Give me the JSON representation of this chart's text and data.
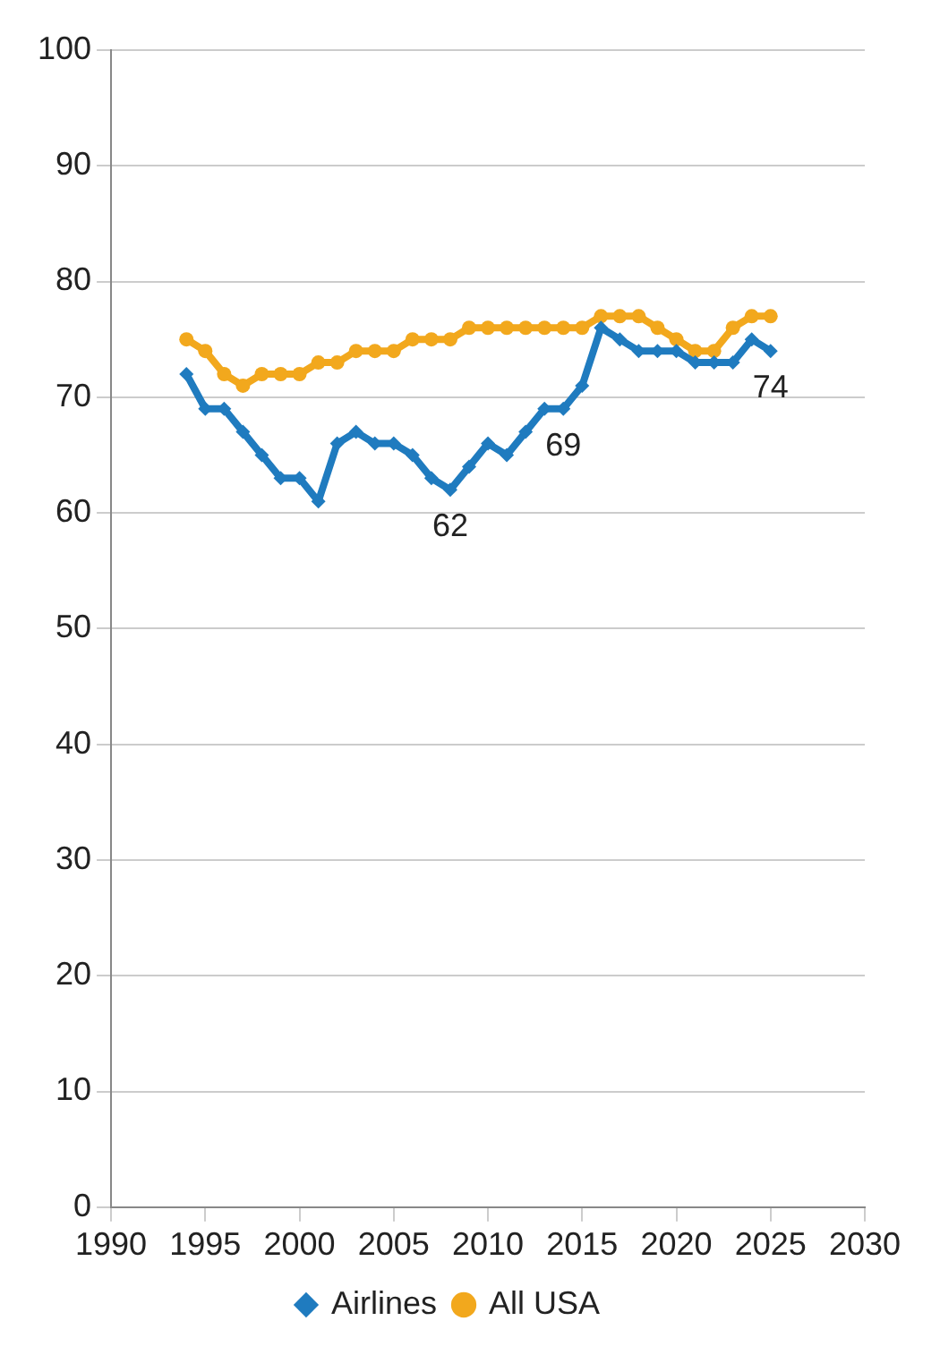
{
  "chart_data": {
    "type": "line",
    "x": [
      1994,
      1995,
      1996,
      1997,
      1998,
      1999,
      2000,
      2001,
      2002,
      2003,
      2004,
      2005,
      2006,
      2007,
      2008,
      2009,
      2010,
      2011,
      2012,
      2013,
      2014,
      2015,
      2016,
      2017,
      2018,
      2019,
      2020,
      2021,
      2022,
      2023,
      2024,
      2025
    ],
    "series": [
      {
        "name": "Airlines",
        "color": "#1f7bbf",
        "marker": "diamond",
        "values": [
          72,
          69,
          69,
          67,
          65,
          63,
          63,
          61,
          66,
          67,
          66,
          66,
          65,
          63,
          62,
          64,
          66,
          65,
          67,
          69,
          69,
          71,
          76,
          75,
          74,
          74,
          74,
          73,
          73,
          73,
          75,
          74
        ]
      },
      {
        "name": "All USA",
        "color": "#f2a81d",
        "marker": "circle",
        "values": [
          75,
          74,
          72,
          71,
          72,
          72,
          72,
          73,
          73,
          74,
          74,
          74,
          75,
          75,
          75,
          76,
          76,
          76,
          76,
          76,
          76,
          76,
          77,
          77,
          77,
          76,
          75,
          74,
          74,
          76,
          77,
          77
        ]
      }
    ],
    "xlim": [
      1990,
      2030
    ],
    "xticks": [
      1990,
      1995,
      2000,
      2005,
      2010,
      2015,
      2020,
      2025,
      2030
    ],
    "ylim": [
      0,
      100
    ],
    "yticks": [
      0,
      10,
      20,
      30,
      40,
      50,
      60,
      70,
      80,
      90,
      100
    ],
    "annotations": [
      {
        "text": "62",
        "x": 2008,
        "y": 62
      },
      {
        "text": "69",
        "x": 2014,
        "y": 69
      },
      {
        "text": "74",
        "x": 2025,
        "y": 74
      }
    ],
    "grid": "y",
    "legend": "bottom"
  }
}
